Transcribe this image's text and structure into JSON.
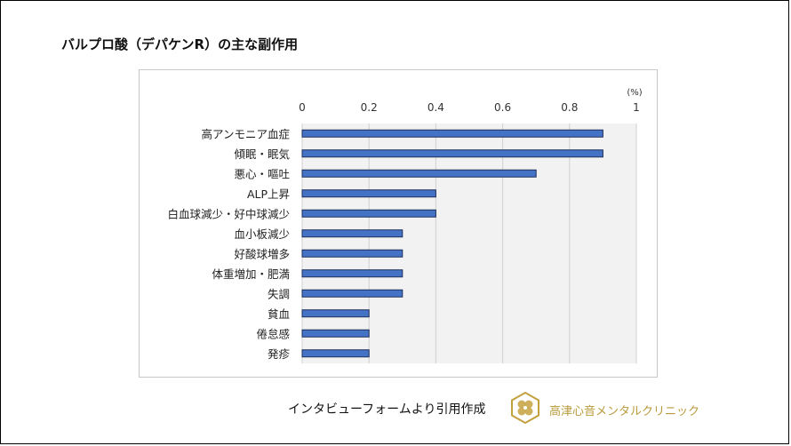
{
  "title": "バルプロ酸（デパケンR）の主な副作用",
  "source_note": "インタビューフォームより引用作成",
  "clinic_name": "高津心音メンタルクリニック",
  "logo_icon": "clover-hexagon-logo",
  "colors": {
    "bar": "#4472c4",
    "bar_border": "#1f2f5c",
    "plot_bg": "#f2f2f2",
    "grid": "#d0d0d0",
    "logo": "#c4a13f"
  },
  "chart_data": {
    "type": "bar",
    "orientation": "horizontal",
    "unit_label": "(%)",
    "categories": [
      "高アンモニア血症",
      "傾眠・眠気",
      "悪心・嘔吐",
      "ALP上昇",
      "白血球減少・好中球減少",
      "血小板減少",
      "好酸球増多",
      "体重増加・肥満",
      "失調",
      "貧血",
      "倦怠感",
      "発疹"
    ],
    "values": [
      0.9,
      0.9,
      0.7,
      0.4,
      0.4,
      0.3,
      0.3,
      0.3,
      0.3,
      0.2,
      0.2,
      0.2
    ],
    "xlim": [
      0,
      1
    ],
    "xticks": [
      "0",
      "0.2",
      "0.4",
      "0.6",
      "0.8",
      "1"
    ],
    "tick_values": [
      0,
      0.2,
      0.4,
      0.6,
      0.8,
      1
    ],
    "axis_position": "top",
    "grid": true,
    "legend": "none"
  }
}
